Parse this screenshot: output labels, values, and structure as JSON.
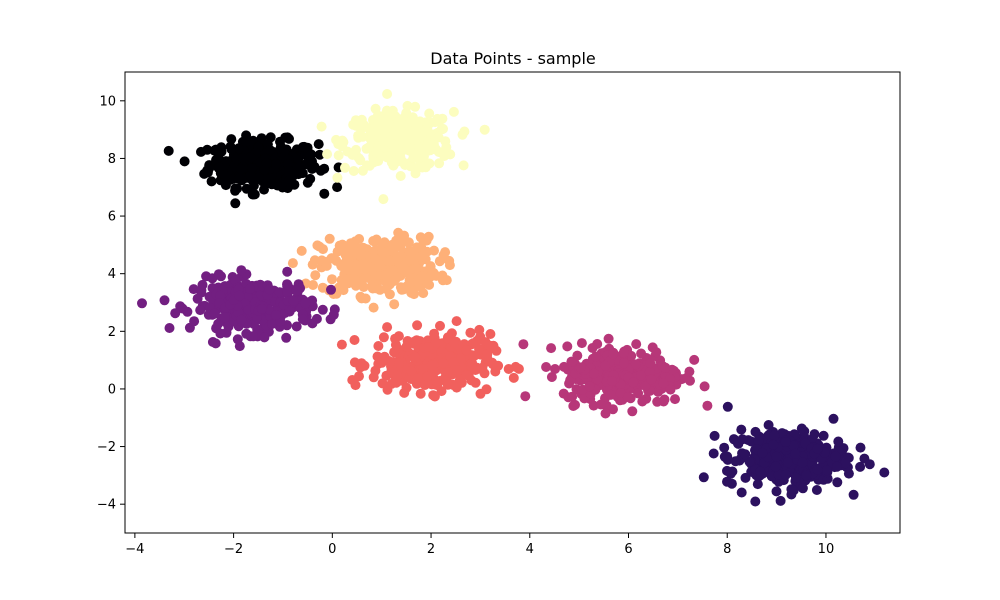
{
  "chart_data": {
    "type": "scatter",
    "title": "Data Points - sample",
    "xlabel": "",
    "ylabel": "",
    "xlim": [
      -4.2,
      11.5
    ],
    "ylim": [
      -5.0,
      11.0
    ],
    "xticks": [
      -4,
      -2,
      0,
      2,
      4,
      6,
      8,
      10
    ],
    "yticks": [
      -4,
      -2,
      0,
      2,
      4,
      6,
      8,
      10
    ],
    "grid": false,
    "legend": "none",
    "clusters": [
      {
        "color": "#000004",
        "center": [
          -1.4,
          7.8
        ],
        "spread": [
          0.55,
          0.4
        ],
        "count": 320
      },
      {
        "color": "#fcfdbf",
        "center": [
          1.35,
          8.6
        ],
        "spread": [
          0.55,
          0.5
        ],
        "count": 320
      },
      {
        "color": "#feb078",
        "center": [
          0.95,
          4.25
        ],
        "spread": [
          0.6,
          0.5
        ],
        "count": 320
      },
      {
        "color": "#721f81",
        "center": [
          -1.6,
          2.9
        ],
        "spread": [
          0.6,
          0.45
        ],
        "count": 320
      },
      {
        "color": "#f1605d",
        "center": [
          2.0,
          0.9
        ],
        "spread": [
          0.6,
          0.5
        ],
        "count": 320
      },
      {
        "color": "#b73779",
        "center": [
          5.9,
          0.5
        ],
        "spread": [
          0.6,
          0.5
        ],
        "count": 320
      },
      {
        "color": "#2c115f",
        "center": [
          9.2,
          -2.4
        ],
        "spread": [
          0.6,
          0.5
        ],
        "count": 320
      }
    ]
  }
}
